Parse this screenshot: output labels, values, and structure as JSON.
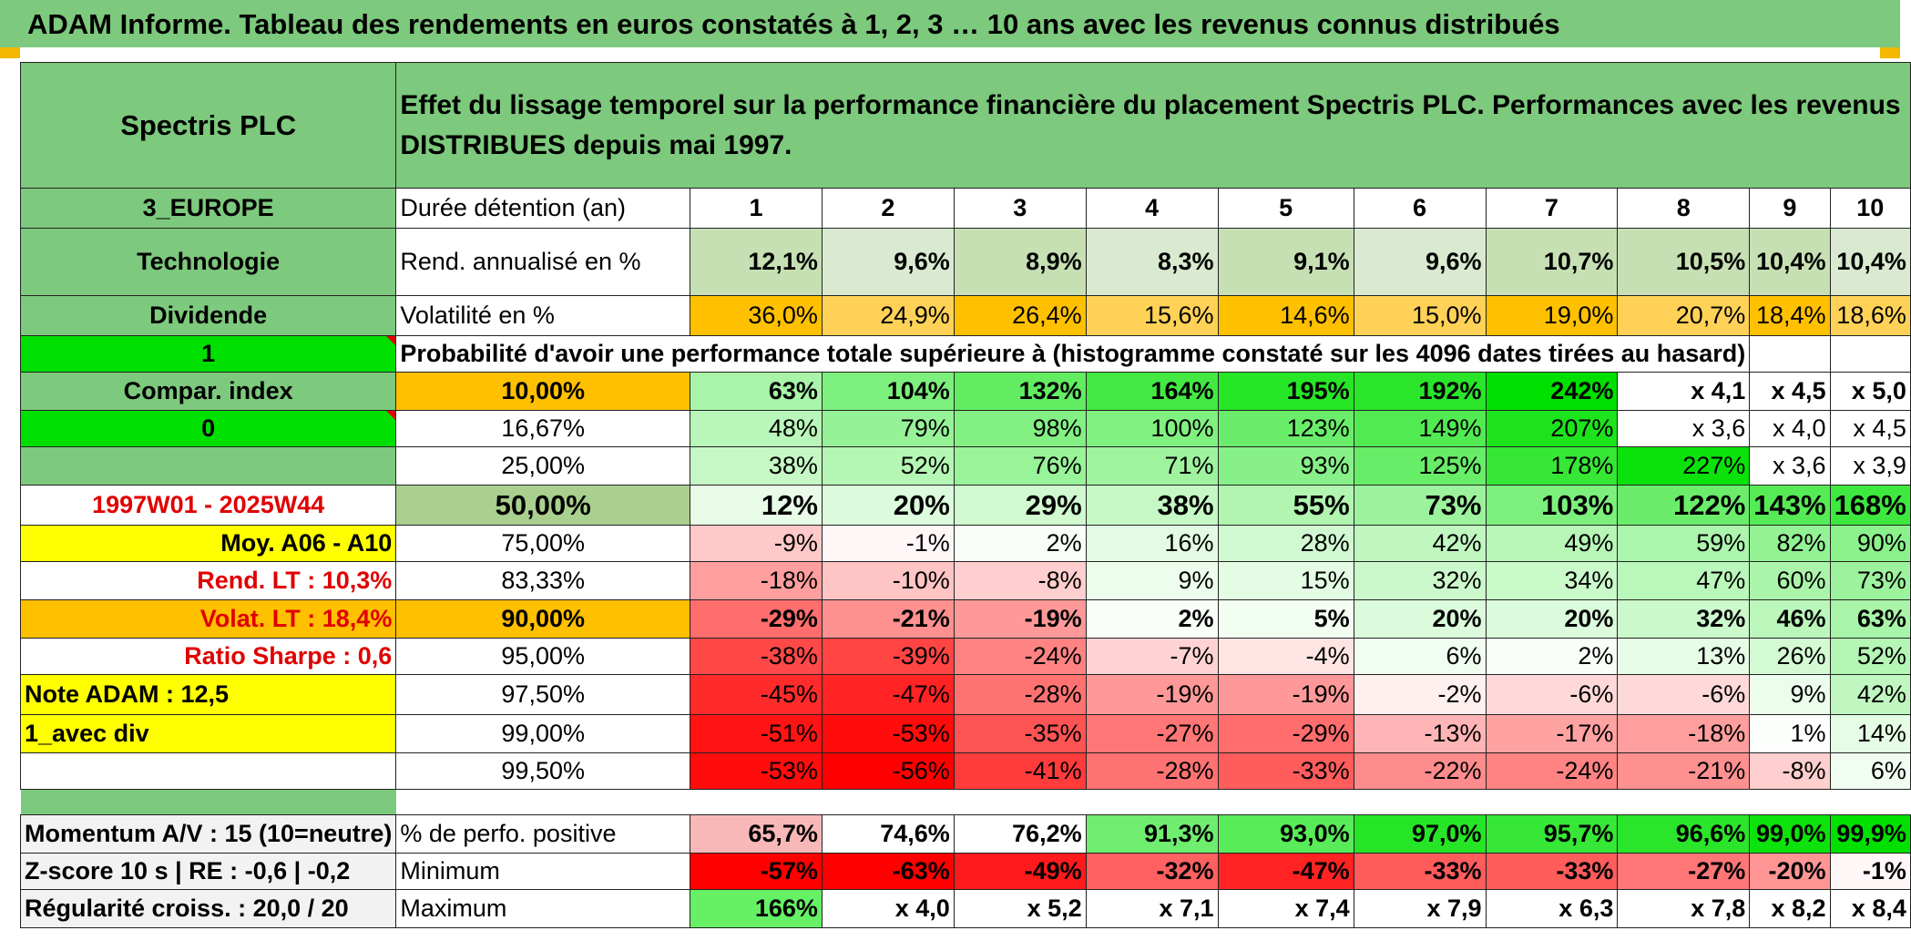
{
  "title": "ADAM Informe. Tableau des rendements en euros constatés à 1, 2, 3 … 10 ans avec les revenus connus distribués",
  "header": {
    "company": "Spectris PLC",
    "description": "Effet du lissage temporel sur la performance financière du placement Spectris PLC. Performances avec les revenus DISTRIBUES depuis mai 1997."
  },
  "left": {
    "region": "3_EUROPE",
    "sector": "Technologie",
    "dividend": "Dividende",
    "one": "1",
    "compar": "Compar. index",
    "zero": "0",
    "blank": "",
    "period": "1997W01 - 2025W44",
    "moy": "Moy. A06 - A10",
    "rend_lt": "Rend. LT :   10,3%",
    "volat_lt": "Volat. LT :   18,4%",
    "sharpe": "Ratio Sharpe :    0,6",
    "note": "Note ADAM : 12,5",
    "avec_div": "1_avec div",
    "momentum": "Momentum A/V : 15 (10=neutre)",
    "zscore": "Z-score 10 s | RE : -0,6 | -0,2",
    "regularite": "Régularité croiss. : 20,0 / 20"
  },
  "labels": {
    "duree": "Durée détention (an)",
    "rend": "Rend. annualisé en %",
    "volat": "Volatilité en %",
    "proba": "Probabilité d'avoir une performance totale supérieure à (histogramme constaté sur les 4096 dates tirées au hasard)",
    "pos": "% de perfo. positive",
    "min": "Minimum",
    "max": "Maximum"
  },
  "years": [
    "1",
    "2",
    "3",
    "4",
    "5",
    "6",
    "7",
    "8",
    "9",
    "10"
  ],
  "rend": [
    "12,1%",
    "9,6%",
    "8,9%",
    "8,3%",
    "9,1%",
    "9,6%",
    "10,7%",
    "10,5%",
    "10,4%",
    "10,4%"
  ],
  "volat": [
    "36,0%",
    "24,9%",
    "26,4%",
    "15,6%",
    "14,6%",
    "15,0%",
    "19,0%",
    "20,7%",
    "18,4%",
    "18,6%"
  ],
  "proba_rows": [
    {
      "p": "10,00%",
      "v": [
        "63%",
        "104%",
        "132%",
        "164%",
        "195%",
        "192%",
        "242%",
        "x 4,1",
        "x 4,5",
        "x 5,0"
      ]
    },
    {
      "p": "16,67%",
      "v": [
        "48%",
        "79%",
        "98%",
        "100%",
        "123%",
        "149%",
        "207%",
        "x 3,6",
        "x 4,0",
        "x 4,5"
      ]
    },
    {
      "p": "25,00%",
      "v": [
        "38%",
        "52%",
        "76%",
        "71%",
        "93%",
        "125%",
        "178%",
        "227%",
        "x 3,6",
        "x 3,9"
      ]
    },
    {
      "p": "50,00%",
      "v": [
        "12%",
        "20%",
        "29%",
        "38%",
        "55%",
        "73%",
        "103%",
        "122%",
        "143%",
        "168%"
      ]
    },
    {
      "p": "75,00%",
      "v": [
        "-9%",
        "-1%",
        "2%",
        "16%",
        "28%",
        "42%",
        "49%",
        "59%",
        "82%",
        "90%"
      ]
    },
    {
      "p": "83,33%",
      "v": [
        "-18%",
        "-10%",
        "-8%",
        "9%",
        "15%",
        "32%",
        "34%",
        "47%",
        "60%",
        "73%"
      ]
    },
    {
      "p": "90,00%",
      "v": [
        "-29%",
        "-21%",
        "-19%",
        "2%",
        "5%",
        "20%",
        "20%",
        "32%",
        "46%",
        "63%"
      ]
    },
    {
      "p": "95,00%",
      "v": [
        "-38%",
        "-39%",
        "-24%",
        "-7%",
        "-4%",
        "6%",
        "2%",
        "13%",
        "26%",
        "52%"
      ]
    },
    {
      "p": "97,50%",
      "v": [
        "-45%",
        "-47%",
        "-28%",
        "-19%",
        "-19%",
        "-2%",
        "-6%",
        "-6%",
        "9%",
        "42%"
      ]
    },
    {
      "p": "99,00%",
      "v": [
        "-51%",
        "-53%",
        "-35%",
        "-27%",
        "-29%",
        "-13%",
        "-17%",
        "-18%",
        "1%",
        "14%"
      ]
    },
    {
      "p": "99,50%",
      "v": [
        "-53%",
        "-56%",
        "-41%",
        "-28%",
        "-33%",
        "-22%",
        "-24%",
        "-21%",
        "-8%",
        "6%"
      ]
    }
  ],
  "pos": [
    "65,7%",
    "74,6%",
    "76,2%",
    "91,3%",
    "93,0%",
    "97,0%",
    "95,7%",
    "96,6%",
    "99,0%",
    "99,9%"
  ],
  "min": [
    "-57%",
    "-63%",
    "-49%",
    "-32%",
    "-47%",
    "-33%",
    "-33%",
    "-27%",
    "-20%",
    "-1%"
  ],
  "max": [
    "166%",
    "x 4,0",
    "x 5,2",
    "x 7,1",
    "x 7,4",
    "x 7,9",
    "x 6,3",
    "x 7,8",
    "x 8,2",
    "x 8,4"
  ],
  "colors": {
    "header_green": "#7dc97d",
    "bright_green": "#00e000",
    "rend_green": "#c6e0b4",
    "volat_orange": "#ffc000",
    "yellow": "#ffff00",
    "red_text": "#e00000"
  }
}
